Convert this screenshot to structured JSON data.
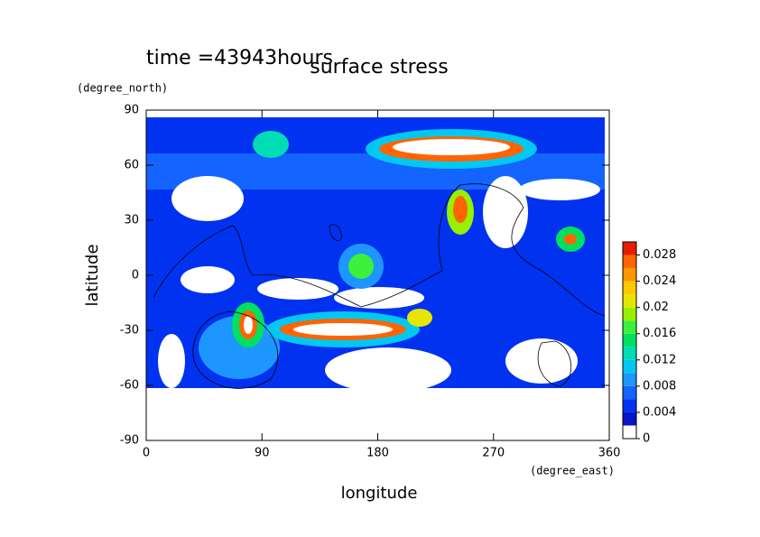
{
  "chart_data": {
    "type": "contour",
    "title": "surface stress",
    "subtitle": "time =43943hours",
    "x_label": "longitude",
    "x_units": "(degree_east)",
    "y_label": "latitude",
    "y_units": "(degree_north)",
    "xlim": [
      0,
      360
    ],
    "xticks": [
      0,
      90,
      180,
      270,
      360
    ],
    "ylim": [
      -90,
      90
    ],
    "yticks": [
      -90,
      -60,
      -30,
      0,
      30,
      60,
      90
    ],
    "colorbar_lim": [
      0,
      0.03
    ],
    "colorbar_ticks": [
      0,
      0.004,
      0.008,
      0.012,
      0.016,
      0.02,
      0.024,
      0.028
    ],
    "levels": [
      0,
      0.002,
      0.004,
      0.006,
      0.008,
      0.01,
      0.012,
      0.014,
      0.016,
      0.018,
      0.02,
      0.022,
      0.024,
      0.026,
      0.028,
      0.03
    ],
    "level_colors": [
      "#ffffff",
      "#0a14c8",
      "#0032f0",
      "#1464ff",
      "#1e96ff",
      "#00c8f0",
      "#00dcb4",
      "#00e060",
      "#3cf03c",
      "#96f000",
      "#e6e600",
      "#ffc800",
      "#ff9600",
      "#ff6400",
      "#e61e00"
    ]
  }
}
